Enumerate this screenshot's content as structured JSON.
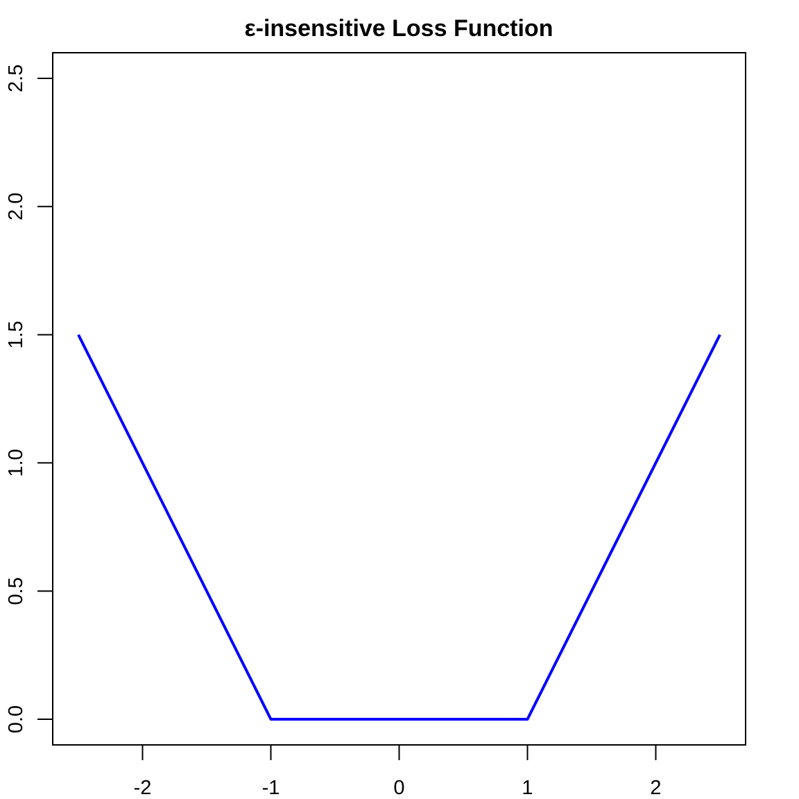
{
  "chart_data": {
    "type": "line",
    "title": "ε-insensitive Loss Function",
    "xlabel": "",
    "ylabel": "",
    "xlim": [
      -2.7,
      2.7
    ],
    "ylim": [
      -0.1,
      2.6
    ],
    "x_ticks": [
      -2,
      -1,
      0,
      1,
      2
    ],
    "x_tick_labels": [
      "-2",
      "-1",
      "0",
      "1",
      "2"
    ],
    "y_ticks": [
      0.0,
      0.5,
      1.0,
      1.5,
      2.0,
      2.5
    ],
    "y_tick_labels": [
      "0.0",
      "0.5",
      "1.0",
      "1.5",
      "2.0",
      "2.5"
    ],
    "grid": false,
    "series": [
      {
        "color": "#0000ff",
        "x": [
          -2.5,
          -1.0,
          1.0,
          2.5
        ],
        "y": [
          1.5,
          0.0,
          0.0,
          1.5
        ]
      }
    ]
  }
}
